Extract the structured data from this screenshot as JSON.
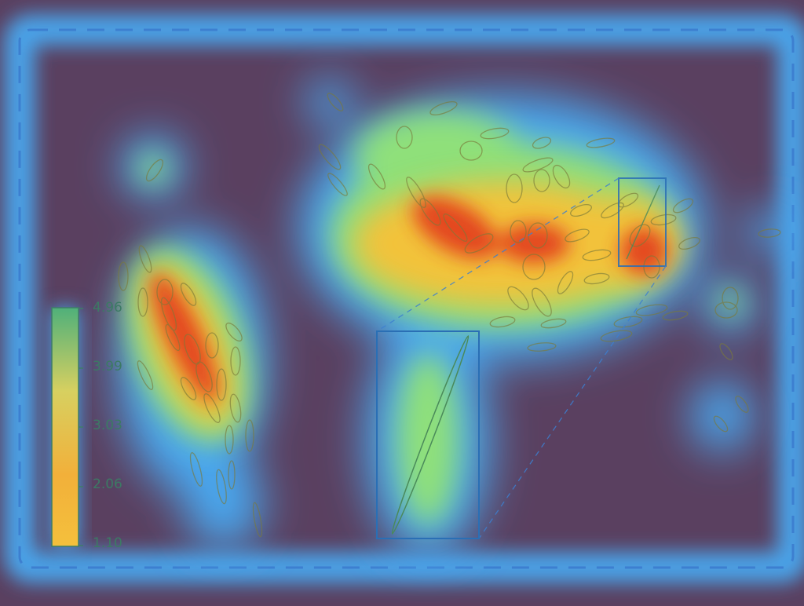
{
  "colorbar": {
    "ticks": [
      "4.96",
      "3.99",
      "3.03",
      "2.06",
      "1.10"
    ],
    "max": 4.96,
    "min": 1.1
  },
  "colors": {
    "background": "#5a4060",
    "low": "#4aa8f0",
    "mid": "#8fe07a",
    "high": "#e23a1e",
    "ellipse_stroke": "#7a7a3a",
    "box_stroke": "#2a6fb5"
  }
}
